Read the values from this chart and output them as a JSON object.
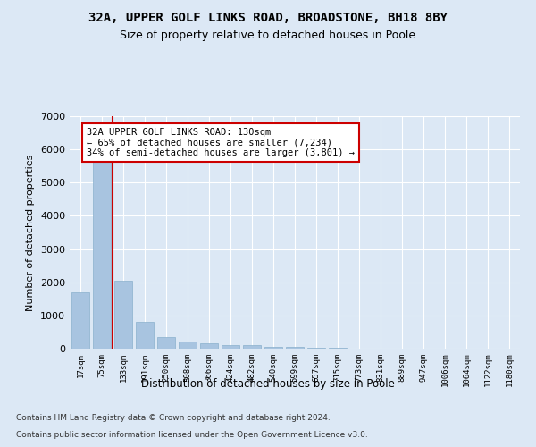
{
  "title_line1": "32A, UPPER GOLF LINKS ROAD, BROADSTONE, BH18 8BY",
  "title_line2": "Size of property relative to detached houses in Poole",
  "xlabel": "Distribution of detached houses by size in Poole",
  "ylabel": "Number of detached properties",
  "bar_color": "#a8c4e0",
  "bar_edge_color": "#8ab0cc",
  "categories": [
    "17sqm",
    "75sqm",
    "133sqm",
    "191sqm",
    "250sqm",
    "308sqm",
    "366sqm",
    "424sqm",
    "482sqm",
    "540sqm",
    "599sqm",
    "657sqm",
    "715sqm",
    "773sqm",
    "831sqm",
    "889sqm",
    "947sqm",
    "1006sqm",
    "1064sqm",
    "1122sqm",
    "1180sqm"
  ],
  "values": [
    1700,
    5750,
    2050,
    800,
    340,
    220,
    155,
    110,
    95,
    65,
    50,
    30,
    30,
    0,
    0,
    0,
    0,
    0,
    0,
    0,
    0
  ],
  "ylim": [
    0,
    7000
  ],
  "yticks": [
    0,
    1000,
    2000,
    3000,
    4000,
    5000,
    6000,
    7000
  ],
  "vline_x": 1.5,
  "annotation_text": "32A UPPER GOLF LINKS ROAD: 130sqm\n← 65% of detached houses are smaller (7,234)\n34% of semi-detached houses are larger (3,801) →",
  "annotation_box_color": "#ffffff",
  "annotation_border_color": "#cc0000",
  "vline_color": "#cc0000",
  "footnote1": "Contains HM Land Registry data © Crown copyright and database right 2024.",
  "footnote2": "Contains public sector information licensed under the Open Government Licence v3.0.",
  "bg_color": "#dce8f5",
  "plot_bg_color": "#dce8f5",
  "grid_color": "#ffffff"
}
